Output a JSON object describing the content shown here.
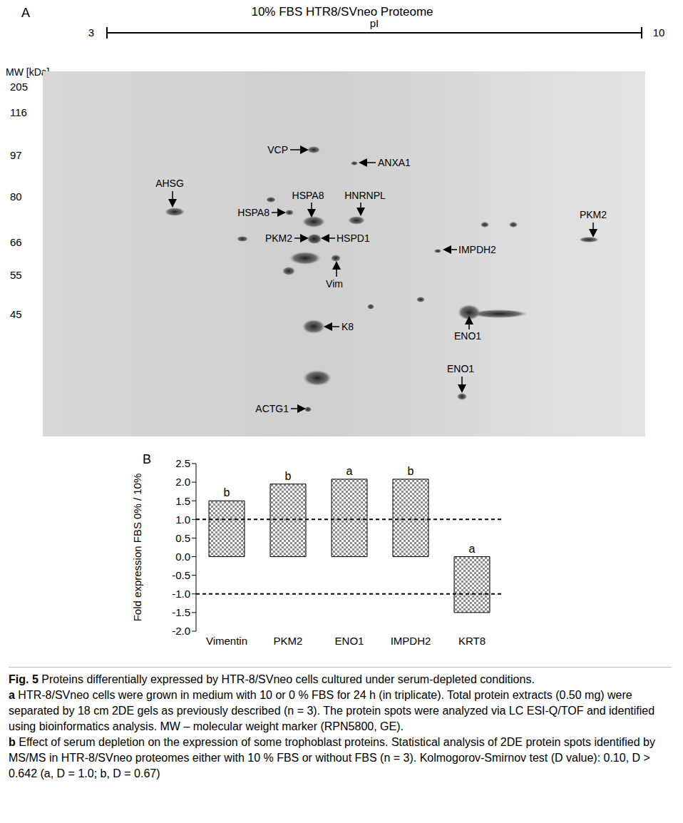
{
  "panel_a": {
    "letter": "A",
    "title": "10% FBS HTR8/SVneo Proteome",
    "pi_label": "pI",
    "pi_range": [
      3,
      10
    ],
    "mw_label": "MW [kDa]",
    "mw_ticks": [
      205,
      116,
      97,
      80,
      66,
      55,
      45
    ],
    "spots": [
      "VCP",
      "ANXA1",
      "AHSG",
      "HSPA8",
      "HNRNPL",
      "HSPA8",
      "PKM2",
      "HSPD1",
      "PKM2",
      "IMPDH2",
      "Vim",
      "ENO1",
      "K8",
      "ENO1",
      "ACTG1"
    ]
  },
  "chart_data": {
    "type": "bar",
    "letter": "B",
    "y_label": "Fold expression FBS 0% / 10%",
    "categories": [
      "Vimentin",
      "PKM2",
      "ENO1",
      "IMPDH2",
      "KRT8"
    ],
    "values": [
      1.5,
      1.95,
      2.08,
      2.08,
      -1.5
    ],
    "annotations": [
      "b",
      "b",
      "a",
      "b",
      "a"
    ],
    "reference_lines": [
      1,
      -1
    ],
    "color": "#8c8c8c",
    "ylim": [
      -2,
      2.5
    ],
    "yticks": [
      {
        "value": -2,
        "label": "-2.0"
      },
      -1.5,
      {
        "value": -1,
        "label": "-1.0"
      },
      -0.5,
      {
        "value": 0,
        "label": "0.0"
      },
      0.5,
      {
        "value": 1,
        "label": "1.0"
      },
      1.5,
      {
        "value": 2,
        "label": "2.0"
      },
      2.5
    ],
    "grid": false
  },
  "caption": {
    "label": "Fig. 5",
    "title": "Proteins differentially expressed by HTR-8/SVneo cells cultured under serum-depleted conditions.",
    "parts": [
      {
        "label": "a",
        "text": "HTR-8/SVneo cells were grown in medium with 10 or 0 % FBS for 24 h (in triplicate). Total protein extracts (0.50 mg) were separated by 18 cm 2DE gels as previously described (n = 3). The protein spots were analyzed via LC ESI-Q/TOF and identified using bioinformatics analysis. MW – molecular weight marker (RPN5800, GE)."
      },
      {
        "label": "b",
        "text": "Effect of serum depletion on the expression of some trophoblast proteins. Statistical analysis of 2DE protein spots identified by MS/MS in HTR-8/SVneo proteomes either with 10 % FBS or without FBS (n = 3). Kolmogorov-Smirnov test (D value): 0.10, D > 0.642 (a, D = 1.0; b, D = 0.67)"
      }
    ]
  }
}
